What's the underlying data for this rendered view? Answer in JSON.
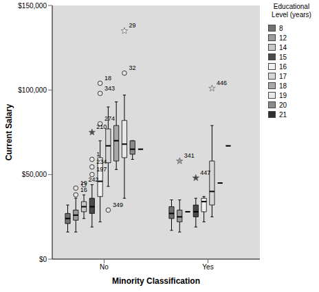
{
  "chart_data": {
    "type": "boxplot",
    "x_label": "Minority Classification",
    "y_label": "Current Salary",
    "legend_title": "Educational Level (years)",
    "legend": "right",
    "categories": [
      "No",
      "Yes"
    ],
    "ylim": [
      0,
      150000
    ],
    "yticks": [
      {
        "value": 0,
        "label": "$0"
      },
      {
        "value": 50000,
        "label": "$50,000"
      },
      {
        "value": 100000,
        "label": "$100,000"
      },
      {
        "value": 150000,
        "label": "$150,000"
      }
    ],
    "series": [
      {
        "name": "8",
        "color": "#707070",
        "values": [
          {
            "min": 16000,
            "q1": 21000,
            "median": 24000,
            "q3": 27000,
            "max": 32000
          },
          {
            "min": 17000,
            "q1": 24000,
            "median": 27000,
            "q3": 31000,
            "max": 35000
          }
        ]
      },
      {
        "name": "12",
        "color": "#9a9a9a",
        "values": [
          {
            "min": 16000,
            "q1": 23000,
            "median": 26000,
            "q3": 29000,
            "max": 36000
          },
          {
            "min": 16000,
            "q1": 22000,
            "median": 25000,
            "q3": 29000,
            "max": 35000
          }
        ]
      },
      {
        "name": "14",
        "color": "#c8c8c8",
        "values": [
          {
            "min": 24000,
            "q1": 28000,
            "median": 31000,
            "q3": 34000,
            "max": 38000
          },
          {
            "min": 28000,
            "q1": 28000,
            "median": 28000,
            "q3": 28000,
            "max": 28000
          }
        ]
      },
      {
        "name": "15",
        "color": "#4a4a4a",
        "values": [
          {
            "min": 19000,
            "q1": 27000,
            "median": 31000,
            "q3": 36000,
            "max": 44000
          },
          {
            "min": 19000,
            "q1": 25000,
            "median": 28000,
            "q3": 32000,
            "max": 36000
          }
        ]
      },
      {
        "name": "16",
        "color": "#f0f0f0",
        "values": [
          {
            "min": 22000,
            "q1": 37000,
            "median": 46000,
            "q3": 60000,
            "max": 70000
          },
          {
            "min": 22000,
            "q1": 28000,
            "median": 34000,
            "q3": 36000,
            "max": 37000
          }
        ]
      },
      {
        "name": "17",
        "color": "#d6d6d6",
        "values": [
          {
            "min": 43000,
            "q1": 57000,
            "median": 67000,
            "q3": 77000,
            "max": 90000
          },
          {
            "min": 25000,
            "q1": 32000,
            "median": 40000,
            "q3": 58000,
            "max": 79000
          }
        ]
      },
      {
        "name": "18",
        "color": "#a8a8a8",
        "values": [
          {
            "min": 53000,
            "q1": 58000,
            "median": 70000,
            "q3": 79000,
            "max": 93000
          },
          {
            "min": 45000,
            "q1": 45000,
            "median": 45000,
            "q3": 45000,
            "max": 45000
          }
        ]
      },
      {
        "name": "19",
        "color": "#e8e8e8",
        "values": [
          {
            "min": 36000,
            "q1": 60000,
            "median": 68000,
            "q3": 82000,
            "max": 97000
          },
          {
            "min": 67000,
            "q1": 67000,
            "median": 67000,
            "q3": 67000,
            "max": 67000
          }
        ]
      },
      {
        "name": "20",
        "color": "#8c8c8c",
        "values": [
          {
            "min": 59000,
            "q1": 62000,
            "median": 65000,
            "q3": 70000,
            "max": 70000
          },
          null
        ]
      },
      {
        "name": "21",
        "color": "#303030",
        "values": [
          {
            "min": 65000,
            "q1": 65000,
            "median": 65000,
            "q3": 65000,
            "max": 65000
          },
          null
        ]
      }
    ],
    "outliers": [
      {
        "category": "No",
        "series": "12",
        "value": 42000,
        "label": "19",
        "marker": "circle"
      },
      {
        "category": "No",
        "series": "12",
        "value": 38000,
        "label": "16",
        "marker": "circle"
      },
      {
        "category": "No",
        "series": "14",
        "value": 44000,
        "label": "242",
        "marker": "circle"
      },
      {
        "category": "No",
        "series": "15",
        "value": 59000,
        "label": "1",
        "marker": "circle"
      },
      {
        "category": "No",
        "series": "15",
        "value": 54500,
        "label": "234",
        "marker": "circle"
      },
      {
        "category": "No",
        "series": "15",
        "value": 50000,
        "label": "197",
        "marker": "circle"
      },
      {
        "category": "No",
        "series": "15",
        "value": 75000,
        "label": "210",
        "marker": "star"
      },
      {
        "category": "No",
        "series": "16",
        "value": 80000,
        "label": "274",
        "marker": "circle"
      },
      {
        "category": "No",
        "series": "16",
        "value": 104000,
        "label": "18",
        "marker": "circle"
      },
      {
        "category": "No",
        "series": "16",
        "value": 98000,
        "label": "343",
        "marker": "circle"
      },
      {
        "category": "No",
        "series": "17",
        "value": 29000,
        "label": "349",
        "marker": "circle"
      },
      {
        "category": "No",
        "series": "19",
        "value": 135000,
        "label": "29",
        "marker": "star"
      },
      {
        "category": "No",
        "series": "19",
        "value": 110000,
        "label": "32",
        "marker": "circle"
      },
      {
        "category": "Yes",
        "series": "12",
        "value": 58000,
        "label": "341",
        "marker": "star"
      },
      {
        "category": "Yes",
        "series": "15",
        "value": 48000,
        "label": "447",
        "marker": "star"
      },
      {
        "category": "Yes",
        "series": "17",
        "value": 101000,
        "label": "446",
        "marker": "star"
      }
    ]
  }
}
